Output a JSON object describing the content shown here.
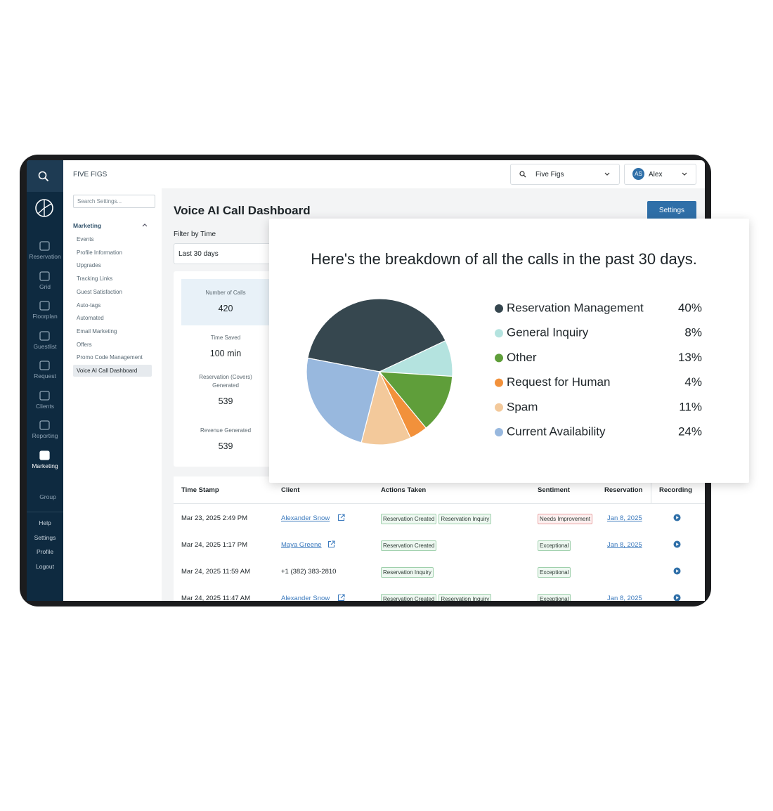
{
  "sidebar": {
    "items": [
      "Reservation",
      "Grid",
      "Floorplan",
      "Guestlist",
      "Request",
      "Clients",
      "Reporting",
      "Marketing"
    ],
    "group": "Group",
    "bottom": [
      "Help",
      "Settings",
      "Profile",
      "Logout"
    ]
  },
  "settings_nav": {
    "brand": "FIVE FIGS",
    "search_placeholder": "Search Settings...",
    "section": "Marketing",
    "items": [
      "Events",
      "Profile Information",
      "Upgrades",
      "Tracking Links",
      "Guest Satisfaction",
      "Auto-tags",
      "Automated",
      "Email Marketing",
      "Offers",
      "Promo Code Management",
      "Voice AI Call Dashboard"
    ]
  },
  "topbar": {
    "venue": "Five Figs",
    "user_initials": "AS",
    "user": "Alex"
  },
  "dashboard": {
    "title": "Voice AI Call Dashboard",
    "settings_button": "Settings",
    "filter_label": "Filter by Time",
    "filter_value": "Last 30 days",
    "stats": [
      {
        "label": "Number of Calls",
        "value": 420
      },
      {
        "label": "Time Saved",
        "value": "100 min"
      },
      {
        "label": "Reservation (Covers) Generated",
        "value": 539
      },
      {
        "label": "Revenue Generated",
        "value": 539
      }
    ]
  },
  "table": {
    "headers": [
      "Time Stamp",
      "Client",
      "Actions Taken",
      "Sentiment",
      "Reservation",
      "Recording"
    ],
    "rows": [
      {
        "time": "Mar 23, 2025 2:49 PM",
        "client": "Alexander Snow",
        "actions": [
          "Reservation Created",
          "Reservation Inquiry"
        ],
        "sentiment": "Needs Improvement",
        "reservation": "Jan 8, 2025"
      },
      {
        "time": "Mar 24, 2025 1:17 PM",
        "client": "Maya Greene",
        "actions": [
          "Reservation Created"
        ],
        "sentiment": "Exceptional",
        "reservation": "Jan 8, 2025"
      },
      {
        "time": "Mar 24, 2025 11:59 AM",
        "client": "+1 (382) 383-2810",
        "actions": [
          "Reservation Inquiry"
        ],
        "sentiment": "Exceptional"
      },
      {
        "time": "Mar 24, 2025 11:47 AM",
        "client": "Alexander Snow",
        "actions": [
          "Reservation Created",
          "Reservation Inquiry"
        ],
        "sentiment": "Exceptional",
        "reservation": "Jan 8, 2025"
      }
    ]
  },
  "chart_data": {
    "type": "pie",
    "title": "Here's the breakdown of all the calls in the past 30 days.",
    "categories": [
      "Reservation Management",
      "General Inquiry",
      "Other",
      "Request for Human",
      "Spam",
      "Current Availability"
    ],
    "values": [
      40,
      8,
      13,
      4,
      11,
      24
    ],
    "value_labels": [
      "40%",
      "8%",
      "13%",
      "4%",
      "11%",
      "24%"
    ],
    "colors": [
      "#36474f",
      "#b4e3df",
      "#5f9e3a",
      "#f2913b",
      "#f3c99b",
      "#98b8de"
    ]
  }
}
